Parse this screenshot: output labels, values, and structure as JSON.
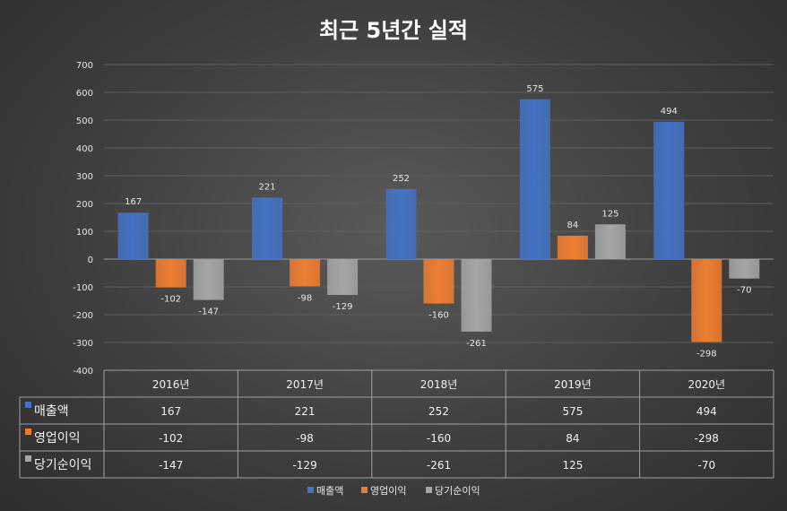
{
  "chart_data": {
    "type": "bar",
    "title": "최근 5년간 실적",
    "categories": [
      "2016년",
      "2017년",
      "2018년",
      "2019년",
      "2020년"
    ],
    "series": [
      {
        "name": "매출액",
        "color": "#4472C4",
        "values": [
          167,
          221,
          252,
          575,
          494
        ]
      },
      {
        "name": "영업이익",
        "color": "#ED7D31",
        "values": [
          -102,
          -98,
          -160,
          84,
          -298
        ]
      },
      {
        "name": "당기순이익",
        "color": "#A5A5A5",
        "values": [
          -147,
          -129,
          -261,
          125,
          -70
        ]
      }
    ],
    "ylim": [
      -400,
      700
    ],
    "yticks": [
      700,
      600,
      500,
      400,
      300,
      200,
      100,
      0,
      -100,
      -200,
      -300,
      -400
    ],
    "grid": true,
    "data_table": true,
    "legend_position": "bottom"
  }
}
